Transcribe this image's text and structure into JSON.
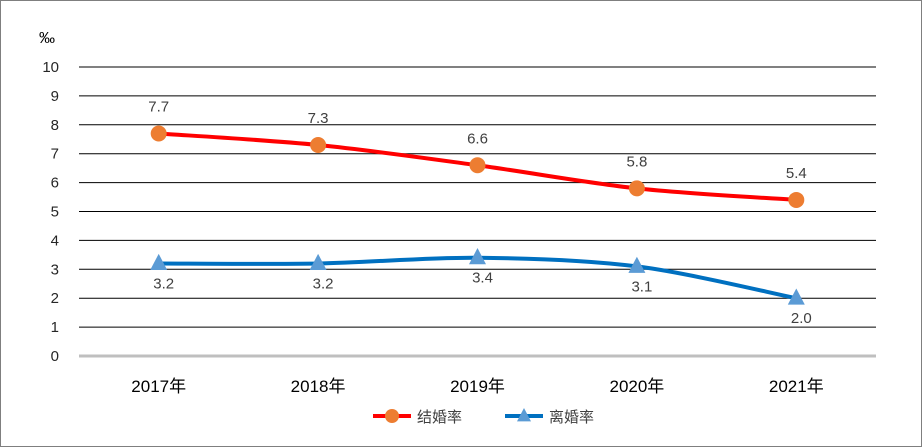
{
  "chart_data": {
    "type": "line",
    "unit_label": "‰",
    "categories": [
      "2017年",
      "2018年",
      "2019年",
      "2020年",
      "2021年"
    ],
    "ylim": [
      0,
      10
    ],
    "yticks": [
      "0",
      "1",
      "2",
      "3",
      "4",
      "5",
      "6",
      "7",
      "8",
      "9",
      "10"
    ],
    "grid": true,
    "legend_position": "bottom",
    "series": [
      {
        "name": "结婚率",
        "values": [
          7.7,
          7.3,
          6.6,
          5.8,
          5.4
        ],
        "labels": [
          "7.7",
          "7.3",
          "6.6",
          "5.8",
          "5.4"
        ],
        "color": "#ff0000",
        "marker": "circle",
        "marker_color": "#ed7d31",
        "label_position": "above"
      },
      {
        "name": "离婚率",
        "values": [
          3.2,
          3.2,
          3.4,
          3.1,
          2.0
        ],
        "labels": [
          "3.2",
          "3.2",
          "3.4",
          "3.1",
          "2.0"
        ],
        "color": "#0070c0",
        "marker": "triangle",
        "marker_color": "#5b9bd5",
        "label_position": "below"
      }
    ]
  }
}
